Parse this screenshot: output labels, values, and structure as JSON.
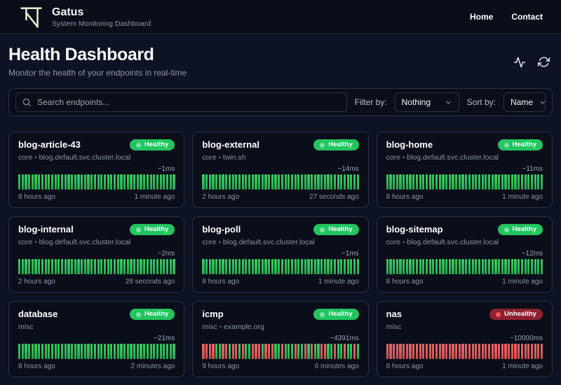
{
  "colors": {
    "page_bg": "#0d1322",
    "header_bg": "#0a0e19",
    "card_bg": "#0a0e1a",
    "card_border": "#27314a",
    "text_primary": "#f5f7fa",
    "text_muted": "#8a93a8",
    "logo_accent": "#e9f4d3",
    "healthy_badge": "#22c55e",
    "healthy_dot": "#7ce3a5",
    "unhealthy_badge": "#8e2130",
    "unhealthy_dot": "#f25c5c",
    "bar_green": "#27a84c",
    "bar_green_light": "#39cf63",
    "bar_red": "#d24f4f",
    "bar_red_light": "#e96a6a"
  },
  "header": {
    "app_name": "Gatus",
    "app_subtitle": "System Monitoring Dashboard",
    "nav": [
      {
        "label": "Home"
      },
      {
        "label": "Contact"
      }
    ]
  },
  "hero": {
    "title": "Health Dashboard",
    "subtitle": "Monitor the health of your endpoints in real-time",
    "icons": [
      "activity-icon",
      "refresh-icon"
    ]
  },
  "toolbar": {
    "search_placeholder": "Search endpoints...",
    "filter_label": "Filter by:",
    "filter_value": "Nothing",
    "sort_label": "Sort by:",
    "sort_value": "Name"
  },
  "status_labels": {
    "up": "Healthy",
    "down": "Unhealthy"
  },
  "cards": [
    {
      "name": "blog-article-43",
      "group": "core",
      "host": "blog.default.svc.cluster.local",
      "status": "up",
      "latency": "~1ms",
      "oldest": "8 hours ago",
      "newest": "1 minute ago",
      "history": "GGGGGGGGGGGGGGGGGGGGGGGGGGGGGGGGGGGGGGGGGGGGGGGG"
    },
    {
      "name": "blog-external",
      "group": "core",
      "host": "twin.sh",
      "status": "up",
      "latency": "~14ms",
      "oldest": "2 hours ago",
      "newest": "27 seconds ago",
      "history": "GGGGGGGGGGGGGGGGGGGGGGGGGGGGGGGGGGGGGGGGGGGGGGGG"
    },
    {
      "name": "blog-home",
      "group": "core",
      "host": "blog.default.svc.cluster.local",
      "status": "up",
      "latency": "~11ms",
      "oldest": "8 hours ago",
      "newest": "1 minute ago",
      "history": "GGGGGGGGGGGGGGGGGGGGGGGGGGGGGGGGGGGGGGGGGGGGGGGG"
    },
    {
      "name": "blog-internal",
      "group": "core",
      "host": "blog.default.svc.cluster.local",
      "status": "up",
      "latency": "~2ms",
      "oldest": "2 hours ago",
      "newest": "28 seconds ago",
      "history": "GGGGGGGGGGGGGGGGGGGGGGGGGGGGGGGGGGGGGGGGGGGGGGGG"
    },
    {
      "name": "blog-poll",
      "group": "core",
      "host": "blog.default.svc.cluster.local",
      "status": "up",
      "latency": "~1ms",
      "oldest": "8 hours ago",
      "newest": "1 minute ago",
      "history": "GGGGGGGGGGGGGGGGGGGGGGGGGGGGGGGGGGGGGGGGGGGGGGGG"
    },
    {
      "name": "blog-sitemap",
      "group": "core",
      "host": "blog.default.svc.cluster.local",
      "status": "up",
      "latency": "~12ms",
      "oldest": "8 hours ago",
      "newest": "1 minute ago",
      "history": "GGGGGGGGGGGGGGGGGGGGGGGGGGGGGGGGGGGGGGGGGGGGGGGG"
    },
    {
      "name": "database",
      "group": "misc",
      "host": null,
      "status": "up",
      "latency": "~21ms",
      "oldest": "8 hours ago",
      "newest": "2 minutes ago",
      "history": "GGGGGGGGGGGGGGGGGGGGGGGGGGGGGGGGGGGGGGGGGGGGGGGG"
    },
    {
      "name": "icmp",
      "group": "misc",
      "host": "example.org",
      "status": "up",
      "latency": "~4391ms",
      "oldest": "9 hours ago",
      "newest": "6 minutes ago",
      "history": "RRRRGGRRGRRGRGGRRRGRRRGGRGGGRGGRGRGGRRGGRGGRGGRG"
    },
    {
      "name": "nas",
      "group": "misc",
      "host": null,
      "status": "down",
      "latency": "~10000ms",
      "oldest": "8 hours ago",
      "newest": "1 minute ago",
      "history": "RRRRRRRRRRRRRRRRRRRRRRRRRRRRRRRRRRRRRRRRRRRRRRRR"
    }
  ]
}
